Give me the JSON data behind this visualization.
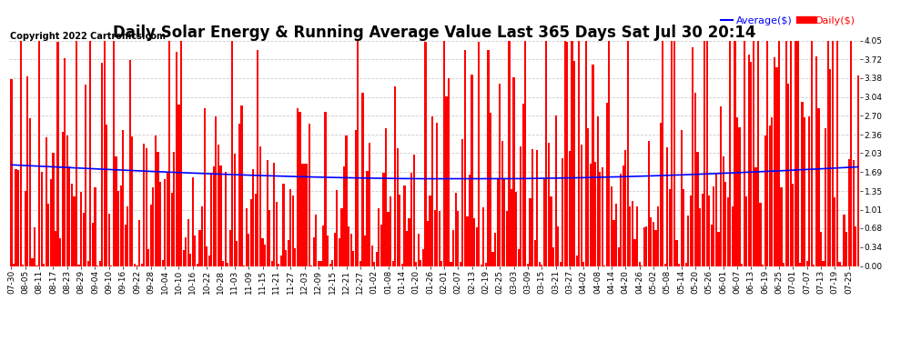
{
  "title": "Daily Solar Energy & Running Average Value Last 365 Days Sat Jul 30 20:14",
  "copyright": "Copyright 2022 Cartronics.com",
  "legend_avg": "Average($)",
  "legend_daily": "Daily($)",
  "background_color": "#ffffff",
  "plot_bg_color": "#ffffff",
  "grid_color": "#cccccc",
  "bar_color": "#ff0000",
  "avg_line_color": "#0000ff",
  "title_fontsize": 12,
  "tick_fontsize": 6.5,
  "copyright_fontsize": 7,
  "legend_fontsize": 8,
  "ylim": [
    0.0,
    4.05
  ],
  "yticks": [
    0.0,
    0.34,
    0.68,
    1.01,
    1.35,
    1.69,
    2.03,
    2.36,
    2.7,
    3.04,
    3.38,
    3.72,
    4.05
  ],
  "x_labels": [
    "07-30",
    "08-05",
    "08-11",
    "08-17",
    "08-23",
    "08-29",
    "09-04",
    "09-10",
    "09-16",
    "09-22",
    "09-28",
    "10-04",
    "10-10",
    "10-16",
    "10-22",
    "10-28",
    "11-03",
    "11-09",
    "11-15",
    "11-21",
    "11-27",
    "12-03",
    "12-09",
    "12-15",
    "12-21",
    "12-27",
    "01-02",
    "01-08",
    "01-14",
    "01-20",
    "01-26",
    "02-01",
    "02-07",
    "02-13",
    "02-19",
    "02-25",
    "03-03",
    "03-09",
    "03-15",
    "03-21",
    "03-27",
    "04-02",
    "04-08",
    "04-14",
    "04-20",
    "04-26",
    "05-02",
    "05-08",
    "05-14",
    "05-20",
    "05-26",
    "06-01",
    "06-07",
    "06-13",
    "06-19",
    "06-25",
    "07-01",
    "07-07",
    "07-13",
    "07-19",
    "07-25"
  ],
  "num_bars": 365,
  "bar_width": 0.85
}
